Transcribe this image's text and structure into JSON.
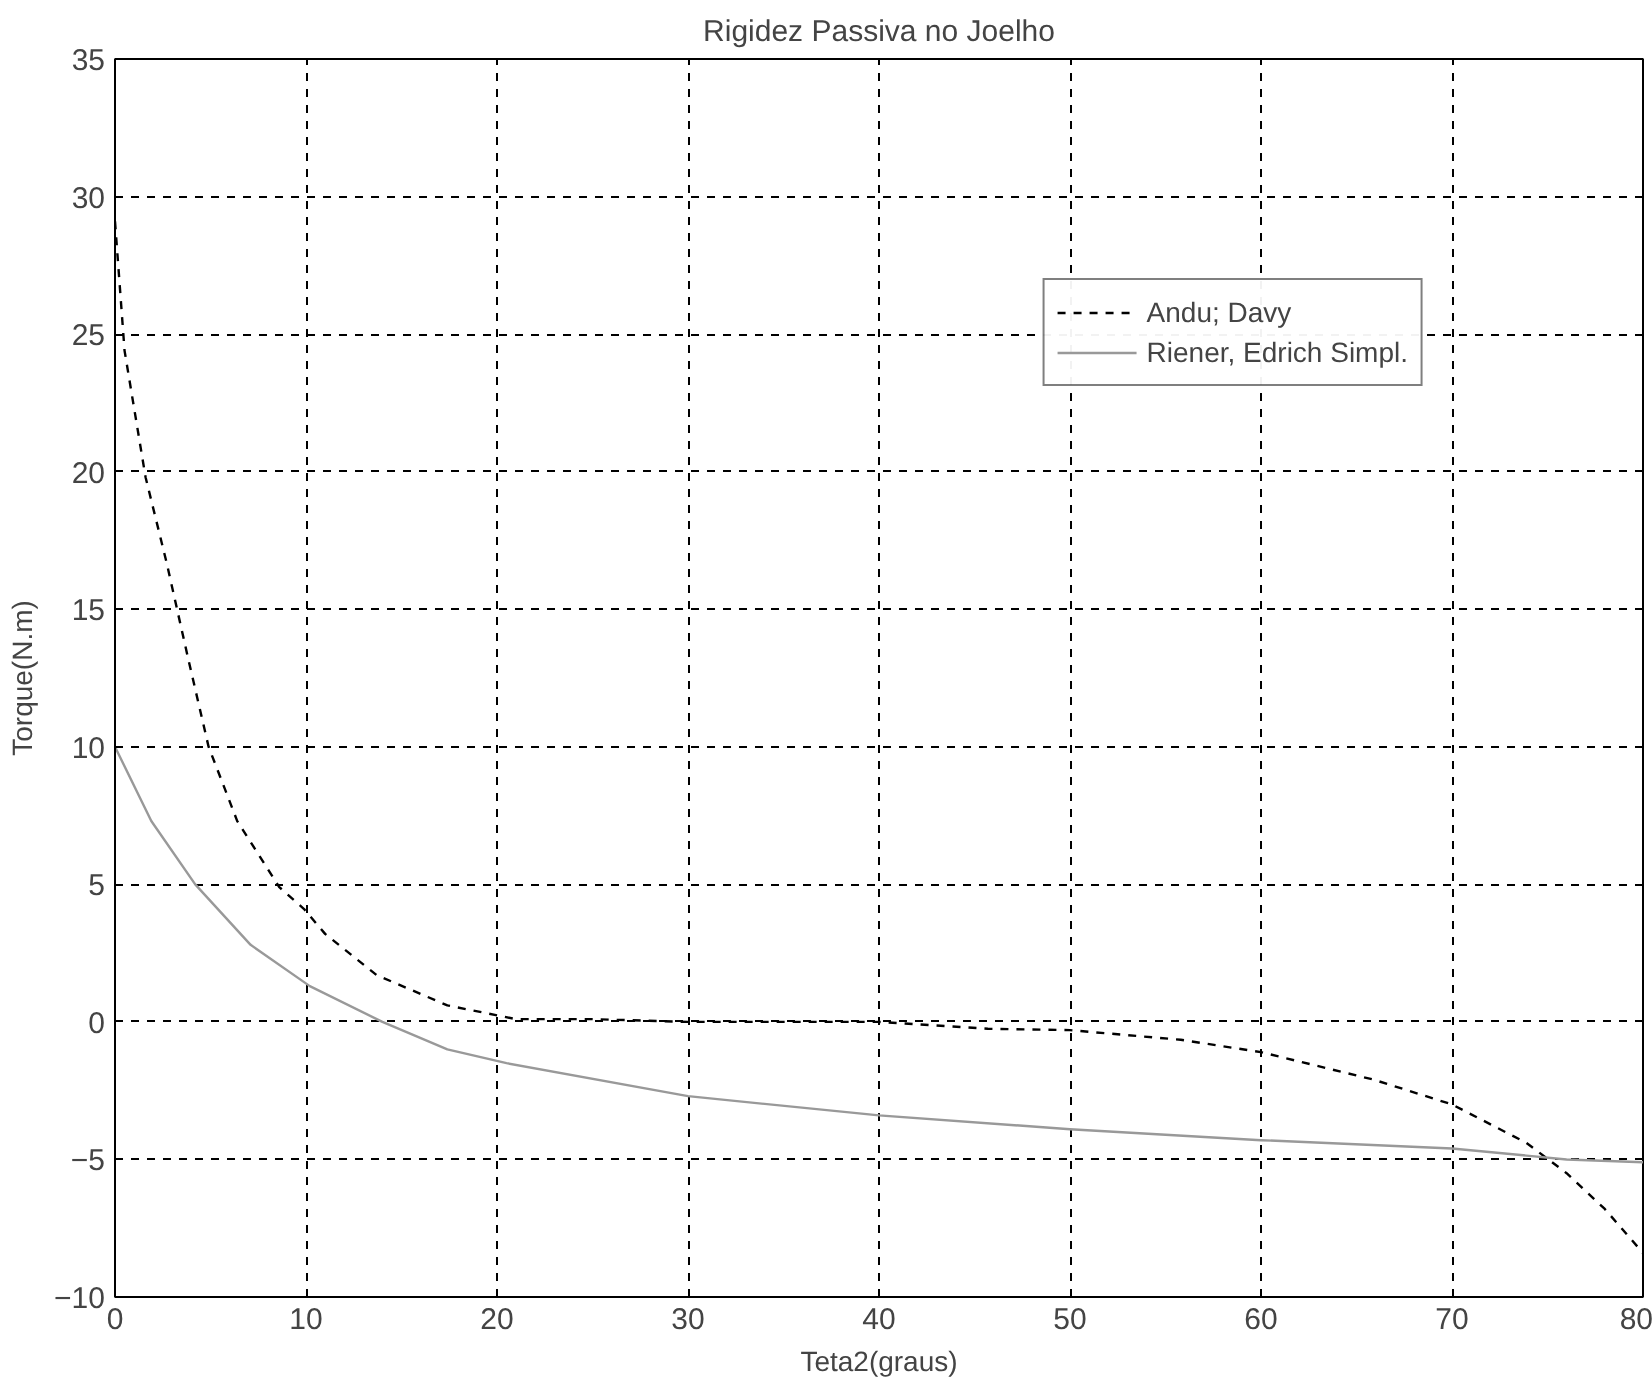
{
  "chart_data": {
    "type": "line",
    "title": "Rigidez Passiva no Joelho",
    "xlabel": "Teta2(graus)",
    "ylabel": "Torque(N.m)",
    "xlim": [
      0,
      80
    ],
    "ylim": [
      -10,
      35
    ],
    "xticks": [
      0,
      10,
      20,
      30,
      40,
      50,
      60,
      70,
      80
    ],
    "yticks": [
      -10,
      -5,
      0,
      5,
      10,
      15,
      20,
      25,
      30,
      35
    ],
    "grid": true,
    "legend": "top right",
    "series": [
      {
        "name": "Andu; Davy",
        "color": "#000000",
        "line_style": "dashed",
        "x": [
          0,
          0.5,
          1.6,
          2.7,
          3.8,
          4.9,
          6.4,
          8.6,
          9.9,
          11,
          13.7,
          17.4,
          21,
          25,
          30,
          40,
          45.7,
          50,
          55.8,
          60,
          65.9,
          70,
          73.9,
          76,
          78,
          80
        ],
        "values": [
          29.1,
          24.4,
          19.8,
          16.7,
          13.3,
          10,
          7.3,
          4.9,
          4.1,
          3.2,
          1.7,
          0.6,
          0.1,
          0.1,
          0,
          0,
          -0.25,
          -0.3,
          -0.65,
          -1.1,
          -2.1,
          -3,
          -4.4,
          -5.5,
          -6.8,
          -8.4
        ]
      },
      {
        "name": "Riener, Edrich Simpl.",
        "color": "#999999",
        "line_style": "solid",
        "x": [
          0,
          1.9,
          4.2,
          7.1,
          10.2,
          14,
          17.4,
          20.5,
          30,
          40,
          50,
          60,
          70,
          76,
          80
        ],
        "values": [
          10,
          7.3,
          5,
          2.8,
          1.3,
          0,
          -1,
          -1.5,
          -2.7,
          -3.4,
          -3.9,
          -4.3,
          -4.6,
          -5,
          -5.1
        ]
      }
    ]
  }
}
